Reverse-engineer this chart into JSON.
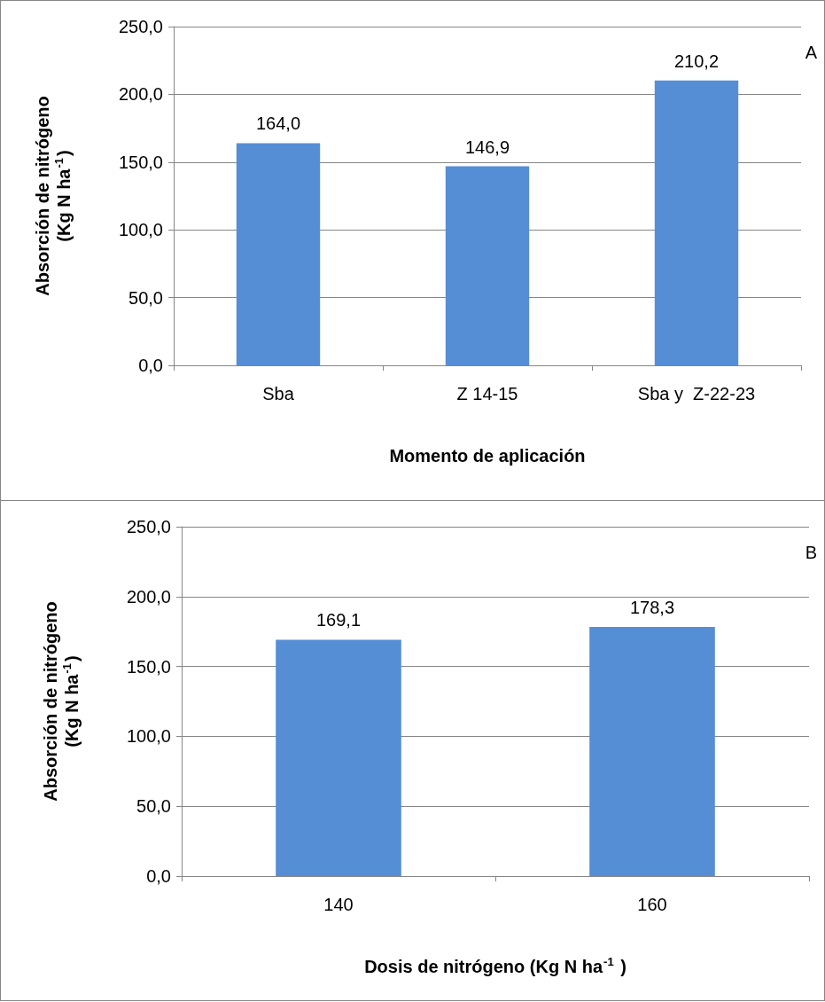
{
  "chart_data": [
    {
      "type": "bar",
      "categories": [
        "Sba",
        "Z 14-15",
        "Sba y  Z-22-23"
      ],
      "values": [
        164.0,
        146.9,
        210.2
      ],
      "value_labels": [
        "164,0",
        "146,9",
        "210,2"
      ],
      "color": "#558ed5",
      "xlabel": "Momento de aplicación",
      "ylabel": "Absorción de nitrógeno\n(Kg N ha$^{-1}$)",
      "ylim": [
        0,
        250
      ],
      "yticks": [
        {
          "value": 0,
          "label": "0,0"
        },
        {
          "value": 50,
          "label": "50,0"
        },
        {
          "value": 100,
          "label": "100,0"
        },
        {
          "value": 150,
          "label": "150,0"
        },
        {
          "value": 200,
          "label": "200,0"
        },
        {
          "value": 250,
          "label": "250,0"
        }
      ],
      "grid": "y",
      "annotations": [
        "A"
      ]
    },
    {
      "type": "bar",
      "categories": [
        "140",
        "160"
      ],
      "values": [
        169.1,
        178.3
      ],
      "value_labels": [
        "169,1",
        "178,3"
      ],
      "color": "#558ed5",
      "xlabel": "Dosis de nitrógeno (Kg N ha$^{-1}$ )",
      "ylabel": "Absorción de nitrógeno\n(Kg N ha$^{-1}$)",
      "ylim": [
        0,
        250
      ],
      "yticks": [
        {
          "value": 0,
          "label": "0,0"
        },
        {
          "value": 50,
          "label": "50,0"
        },
        {
          "value": 100,
          "label": "100,0"
        },
        {
          "value": 150,
          "label": "150,0"
        },
        {
          "value": 200,
          "label": "200,0"
        },
        {
          "value": 250,
          "label": "250,0"
        }
      ],
      "grid": "y",
      "annotations": [
        "B"
      ]
    }
  ]
}
